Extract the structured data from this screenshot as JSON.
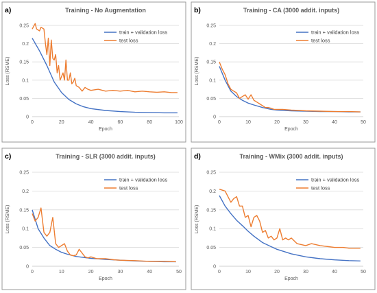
{
  "colors": {
    "train": "#4472c4",
    "test": "#ed7d31"
  },
  "chart_data": [
    {
      "type": "line",
      "panel_letter": "a)",
      "title": "Training - No Augmentation",
      "xlabel": "Epoch",
      "ylabel": "Loss (RSME)",
      "xlim": [
        0,
        100
      ],
      "ylim": [
        0,
        0.25
      ],
      "xticks": [
        0,
        20,
        40,
        60,
        80,
        100
      ],
      "yticks": [
        0,
        0.05,
        0.1,
        0.15,
        0.2,
        0.25
      ],
      "ytick_labels": [
        "0",
        "0.05",
        "0.1",
        "0.15",
        "0.2",
        "0.25"
      ],
      "grid": true,
      "legend_position": "top-right",
      "series": [
        {
          "name": "train + validation loss",
          "color_key": "train",
          "x": [
            0,
            5,
            10,
            15,
            20,
            25,
            30,
            35,
            40,
            50,
            60,
            70,
            80,
            90,
            99
          ],
          "y": [
            0.215,
            0.18,
            0.14,
            0.095,
            0.066,
            0.047,
            0.035,
            0.027,
            0.022,
            0.017,
            0.014,
            0.012,
            0.011,
            0.0105,
            0.0105
          ]
        },
        {
          "name": "test loss",
          "color_key": "test",
          "x": [
            0,
            2,
            3,
            5,
            6,
            8,
            9,
            10,
            11,
            12,
            13,
            14,
            15,
            16,
            17,
            18,
            19,
            20,
            21,
            22,
            23,
            24,
            25,
            26,
            27,
            28,
            29,
            30,
            32,
            34,
            36,
            38,
            40,
            45,
            50,
            55,
            60,
            65,
            70,
            75,
            80,
            85,
            90,
            95,
            99
          ],
          "y": [
            0.24,
            0.255,
            0.24,
            0.235,
            0.245,
            0.24,
            0.2,
            0.17,
            0.215,
            0.14,
            0.21,
            0.16,
            0.155,
            0.17,
            0.12,
            0.14,
            0.1,
            0.11,
            0.12,
            0.1,
            0.155,
            0.1,
            0.1,
            0.12,
            0.09,
            0.095,
            0.105,
            0.085,
            0.08,
            0.07,
            0.08,
            0.075,
            0.072,
            0.075,
            0.07,
            0.072,
            0.07,
            0.072,
            0.068,
            0.07,
            0.068,
            0.067,
            0.068,
            0.066,
            0.066
          ]
        }
      ]
    },
    {
      "type": "line",
      "panel_letter": "b)",
      "title": "Training - CA (3000 addit. inputs)",
      "xlabel": "Epoch",
      "ylabel": "Loss (RSME)",
      "xlim": [
        0,
        50
      ],
      "ylim": [
        0,
        0.25
      ],
      "xticks": [
        0,
        10,
        20,
        30,
        40,
        50
      ],
      "yticks": [
        0,
        0.05,
        0.1,
        0.15,
        0.2,
        0.25
      ],
      "ytick_labels": [
        "0",
        "0.05",
        "0.1",
        "0.15",
        "0.2",
        "0.25"
      ],
      "grid": true,
      "legend_position": "top-right",
      "series": [
        {
          "name": "train + validation loss",
          "color_key": "train",
          "x": [
            0,
            2,
            4,
            6,
            8,
            10,
            12,
            15,
            18,
            20,
            25,
            30,
            35,
            40,
            45,
            49
          ],
          "y": [
            0.138,
            0.1,
            0.07,
            0.055,
            0.045,
            0.037,
            0.032,
            0.025,
            0.02,
            0.018,
            0.016,
            0.015,
            0.014,
            0.014,
            0.013,
            0.013
          ]
        },
        {
          "name": "test loss",
          "color_key": "test",
          "x": [
            0,
            1,
            2,
            3,
            4,
            5,
            6,
            7,
            8,
            9,
            10,
            11,
            12,
            13,
            14,
            15,
            16,
            17,
            18,
            19,
            20,
            22,
            25,
            28,
            30,
            35,
            40,
            45,
            49
          ],
          "y": [
            0.15,
            0.13,
            0.115,
            0.09,
            0.075,
            0.07,
            0.065,
            0.05,
            0.055,
            0.06,
            0.048,
            0.06,
            0.045,
            0.04,
            0.035,
            0.03,
            0.025,
            0.025,
            0.023,
            0.02,
            0.02,
            0.02,
            0.018,
            0.017,
            0.016,
            0.015,
            0.014,
            0.014,
            0.013
          ]
        }
      ]
    },
    {
      "type": "line",
      "panel_letter": "c)",
      "title": "Training - SLR (3000 addit. inputs)",
      "xlabel": "Epoch",
      "ylabel": "Loss (RSME)",
      "xlim": [
        0,
        50
      ],
      "ylim": [
        0,
        0.25
      ],
      "xticks": [
        0,
        10,
        20,
        30,
        40,
        50
      ],
      "yticks": [
        0,
        0.05,
        0.1,
        0.15,
        0.2,
        0.25
      ],
      "ytick_labels": [
        "0",
        "0.05",
        "0.1",
        "0.15",
        "0.2",
        "0.25"
      ],
      "grid": true,
      "legend_position": "top-right",
      "series": [
        {
          "name": "train + validation loss",
          "color_key": "train",
          "x": [
            0,
            1,
            2,
            4,
            6,
            8,
            10,
            12,
            15,
            20,
            25,
            30,
            35,
            40,
            45,
            49
          ],
          "y": [
            0.15,
            0.125,
            0.1,
            0.075,
            0.055,
            0.045,
            0.037,
            0.032,
            0.026,
            0.021,
            0.018,
            0.016,
            0.014,
            0.013,
            0.012,
            0.012
          ]
        },
        {
          "name": "test loss",
          "color_key": "test",
          "x": [
            0,
            1,
            2,
            3,
            4,
            5,
            6,
            7,
            8,
            9,
            10,
            11,
            12,
            13,
            14,
            15,
            16,
            17,
            18,
            19,
            20,
            22,
            25,
            28,
            30,
            35,
            40,
            45,
            49
          ],
          "y": [
            0.14,
            0.12,
            0.13,
            0.155,
            0.09,
            0.08,
            0.09,
            0.13,
            0.06,
            0.05,
            0.055,
            0.06,
            0.04,
            0.03,
            0.028,
            0.03,
            0.045,
            0.035,
            0.025,
            0.022,
            0.025,
            0.02,
            0.02,
            0.017,
            0.016,
            0.015,
            0.013,
            0.013,
            0.012
          ]
        }
      ]
    },
    {
      "type": "line",
      "panel_letter": "d)",
      "title": "Training - WMix (3000 addit. inputs)",
      "xlabel": "Epoch",
      "ylabel": "Loss (RSME)",
      "xlim": [
        0,
        50
      ],
      "ylim": [
        0,
        0.25
      ],
      "xticks": [
        0,
        10,
        20,
        30,
        40,
        50
      ],
      "yticks": [
        0,
        0.05,
        0.1,
        0.15,
        0.2,
        0.25
      ],
      "ytick_labels": [
        "0",
        "0.05",
        "0.1",
        "0.15",
        "0.2",
        "0.25"
      ],
      "grid": true,
      "legend_position": "top-right",
      "series": [
        {
          "name": "train + validation loss",
          "color_key": "train",
          "x": [
            0,
            2,
            4,
            6,
            8,
            10,
            12,
            15,
            18,
            20,
            25,
            30,
            35,
            40,
            45,
            49
          ],
          "y": [
            0.188,
            0.16,
            0.14,
            0.122,
            0.108,
            0.093,
            0.08,
            0.063,
            0.052,
            0.045,
            0.033,
            0.025,
            0.02,
            0.017,
            0.015,
            0.014
          ]
        },
        {
          "name": "test loss",
          "color_key": "test",
          "x": [
            0,
            2,
            3,
            4,
            5,
            6,
            7,
            8,
            9,
            10,
            11,
            12,
            13,
            14,
            15,
            16,
            17,
            18,
            19,
            20,
            21,
            22,
            23,
            24,
            25,
            27,
            30,
            32,
            35,
            38,
            40,
            43,
            45,
            49
          ],
          "y": [
            0.205,
            0.2,
            0.185,
            0.17,
            0.18,
            0.185,
            0.16,
            0.16,
            0.13,
            0.135,
            0.105,
            0.13,
            0.135,
            0.12,
            0.09,
            0.095,
            0.075,
            0.08,
            0.07,
            0.075,
            0.1,
            0.07,
            0.075,
            0.07,
            0.075,
            0.06,
            0.055,
            0.06,
            0.055,
            0.052,
            0.05,
            0.05,
            0.048,
            0.048
          ]
        }
      ]
    }
  ]
}
